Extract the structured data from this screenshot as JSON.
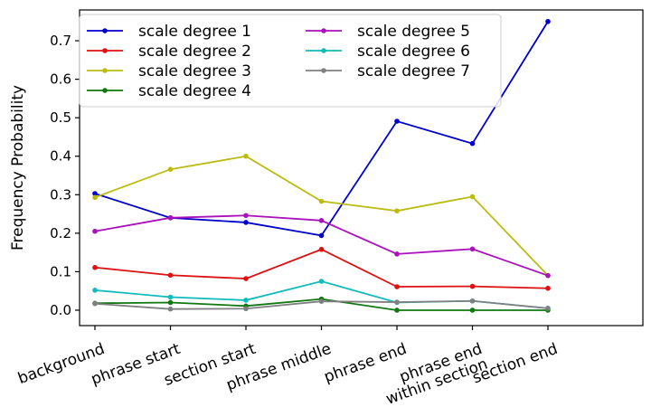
{
  "chart_data": {
    "type": "line",
    "title": "",
    "xlabel": "",
    "ylabel": "Frequency Probability",
    "categories": [
      "background",
      "phrase start",
      "section start",
      "phrase middle",
      "phrase end",
      "phrase end\nwithin section",
      "section end"
    ],
    "ylim": [
      -0.04,
      0.78
    ],
    "yticks": [
      0.0,
      0.1,
      0.2,
      0.3,
      0.4,
      0.5,
      0.6,
      0.7
    ],
    "ytick_labels": [
      "0.0",
      "0.1",
      "0.2",
      "0.3",
      "0.4",
      "0.5",
      "0.6",
      "0.7"
    ],
    "grid": false,
    "legend": "top-left",
    "legend_columns": 2,
    "series": [
      {
        "name": "scale degree 1",
        "color": "#0000cc",
        "values": [
          0.303,
          0.24,
          0.228,
          0.194,
          0.491,
          0.433,
          0.75
        ]
      },
      {
        "name": "scale degree 2",
        "color": "#dd1111",
        "values": [
          0.111,
          0.091,
          0.082,
          0.158,
          0.061,
          0.062,
          0.057
        ]
      },
      {
        "name": "scale degree 3",
        "color": "#bbbb11",
        "values": [
          0.293,
          0.366,
          0.4,
          0.283,
          0.258,
          0.295,
          0.09
        ]
      },
      {
        "name": "scale degree 4",
        "color": "#117711",
        "values": [
          0.018,
          0.02,
          0.011,
          0.029,
          0.0,
          0.0,
          0.0
        ]
      },
      {
        "name": "scale degree 5",
        "color": "#aa11bb",
        "values": [
          0.205,
          0.24,
          0.246,
          0.233,
          0.146,
          0.159,
          0.09
        ]
      },
      {
        "name": "scale degree 6",
        "color": "#11bbbb",
        "values": [
          0.052,
          0.034,
          0.026,
          0.075,
          0.02,
          0.024,
          0.005
        ]
      },
      {
        "name": "scale degree 7",
        "color": "#808080",
        "values": [
          0.017,
          0.003,
          0.004,
          0.023,
          0.021,
          0.024,
          0.005
        ]
      }
    ]
  }
}
